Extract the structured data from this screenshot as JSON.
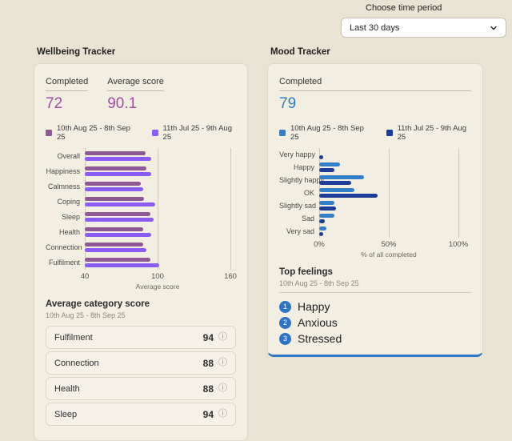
{
  "time_period": {
    "label": "Choose time period",
    "selected": "Last 30 days"
  },
  "wellbeing": {
    "title": "Wellbeing Tracker",
    "stats": {
      "completed_label": "Completed",
      "completed_value": "72",
      "avg_label": "Average score",
      "avg_value": "90.1",
      "accent": "#9c509c"
    },
    "legend": [
      {
        "label": "10th Aug 25 - 8th Sep 25",
        "color": "#8d5894"
      },
      {
        "label": "11th Jul 25 - 9th Aug 25",
        "color": "#8b5cf6"
      }
    ],
    "category_scores": {
      "title": "Average category score",
      "subtitle": "10th Aug 25 - 8th Sep 25",
      "info_icon": "ⓘ",
      "items": [
        {
          "label": "Fulfilment",
          "value": "94"
        },
        {
          "label": "Connection",
          "value": "88"
        },
        {
          "label": "Health",
          "value": "88"
        },
        {
          "label": "Sleep",
          "value": "94"
        }
      ]
    }
  },
  "mood": {
    "title": "Mood Tracker",
    "stats": {
      "completed_label": "Completed",
      "completed_value": "79",
      "accent": "#2e7dc3"
    },
    "legend": [
      {
        "label": "10th Aug 25 - 8th Sep 25",
        "color": "#3380c8"
      },
      {
        "label": "11th Jul 25 - 9th Aug 25",
        "color": "#1c3c9c"
      }
    ],
    "top_feelings": {
      "title": "Top feelings",
      "subtitle": "10th Aug 25 - 8th Sep 25",
      "badge_color": "#2d74c6",
      "items": [
        "Happy",
        "Anxious",
        "Stressed"
      ]
    }
  },
  "chart_data": [
    {
      "id": "wellbeing",
      "type": "bar",
      "orientation": "horizontal",
      "title": "Wellbeing Tracker",
      "categories": [
        "Overall",
        "Happiness",
        "Calmness",
        "Coping",
        "Sleep",
        "Health",
        "Connection",
        "Fulfilment"
      ],
      "series": [
        {
          "name": "10th Aug 25 - 8th Sep 25",
          "color": "#8d5894",
          "values": [
            90,
            91,
            86,
            89,
            94,
            88,
            88,
            94
          ]
        },
        {
          "name": "11th Jul 25 - 9th Aug 25",
          "color": "#8b5cf6",
          "values": [
            95,
            95,
            88,
            98,
            97,
            95,
            91,
            101
          ]
        }
      ],
      "xlabel": "Average score",
      "xlim": [
        40,
        160
      ],
      "xticks": [
        40,
        100,
        160
      ],
      "tick_labels": [
        "40",
        "100",
        "160"
      ],
      "grid": true,
      "legend_position": "top"
    },
    {
      "id": "mood",
      "type": "bar",
      "orientation": "horizontal",
      "title": "Mood Tracker",
      "categories": [
        "Very happy",
        "Happy",
        "Slightly happy",
        "OK",
        "Slightly sad",
        "Sad",
        "Very sad"
      ],
      "series": [
        {
          "name": "10th Aug 25 - 8th Sep 25",
          "color": "#3380c8",
          "values": [
            0,
            15,
            32,
            25,
            11,
            11,
            5
          ]
        },
        {
          "name": "11th Jul 25 - 9th Aug 25",
          "color": "#1c3c9c",
          "values": [
            3,
            11,
            23,
            42,
            12,
            4,
            3
          ]
        }
      ],
      "xlabel": "% of all completed",
      "xlim": [
        0,
        100
      ],
      "xticks": [
        0,
        50,
        100
      ],
      "tick_labels": [
        "0%",
        "50%",
        "100%"
      ],
      "grid": true,
      "legend_position": "top"
    }
  ]
}
